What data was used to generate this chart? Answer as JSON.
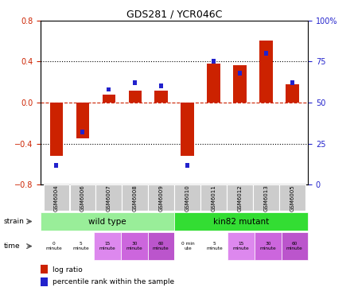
{
  "title": "GDS281 / YCR046C",
  "samples": [
    "GSM6004",
    "GSM6006",
    "GSM6007",
    "GSM6008",
    "GSM6009",
    "GSM6010",
    "GSM6011",
    "GSM6012",
    "GSM6013",
    "GSM6005"
  ],
  "log_ratios": [
    -0.52,
    -0.35,
    0.08,
    0.12,
    0.12,
    -0.52,
    0.38,
    0.36,
    0.6,
    0.18
  ],
  "percentile_ranks": [
    12,
    32,
    58,
    62,
    60,
    12,
    75,
    68,
    80,
    62
  ],
  "ylim_left": [
    -0.8,
    0.8
  ],
  "ylim_right": [
    0,
    100
  ],
  "yticks_left": [
    -0.8,
    -0.4,
    0.0,
    0.4,
    0.8
  ],
  "yticks_right": [
    0,
    25,
    50,
    75,
    100
  ],
  "ytick_labels_right": [
    "0",
    "25",
    "50",
    "75",
    "100%"
  ],
  "bar_color_red": "#cc2200",
  "bar_color_blue": "#2222cc",
  "dashed_line_color": "#cc2200",
  "wild_type_color": "#99ee99",
  "kin82_color": "#33dd33",
  "time_colors": [
    "#ffffff",
    "#ffffff",
    "#dd88ee",
    "#cc66dd",
    "#bb55cc",
    "#ffffff",
    "#ffffff",
    "#dd88ee",
    "#cc66dd",
    "#bb55cc"
  ],
  "time_labels": [
    "0\nminute",
    "5\nminute",
    "15\nminute",
    "30\nminute",
    "60\nminute",
    "0 min\nute",
    "5\nminute",
    "15\nminute",
    "30\nminute",
    "60\nminute"
  ],
  "strain_labels": [
    "wild type",
    "kin82 mutant"
  ],
  "legend_red_label": "log ratio",
  "legend_blue_label": "percentile rank within the sample",
  "tick_label_color_left": "#cc2200",
  "tick_label_color_right": "#2222cc",
  "bg_color": "#ffffff",
  "gsm_bg": "#cccccc"
}
